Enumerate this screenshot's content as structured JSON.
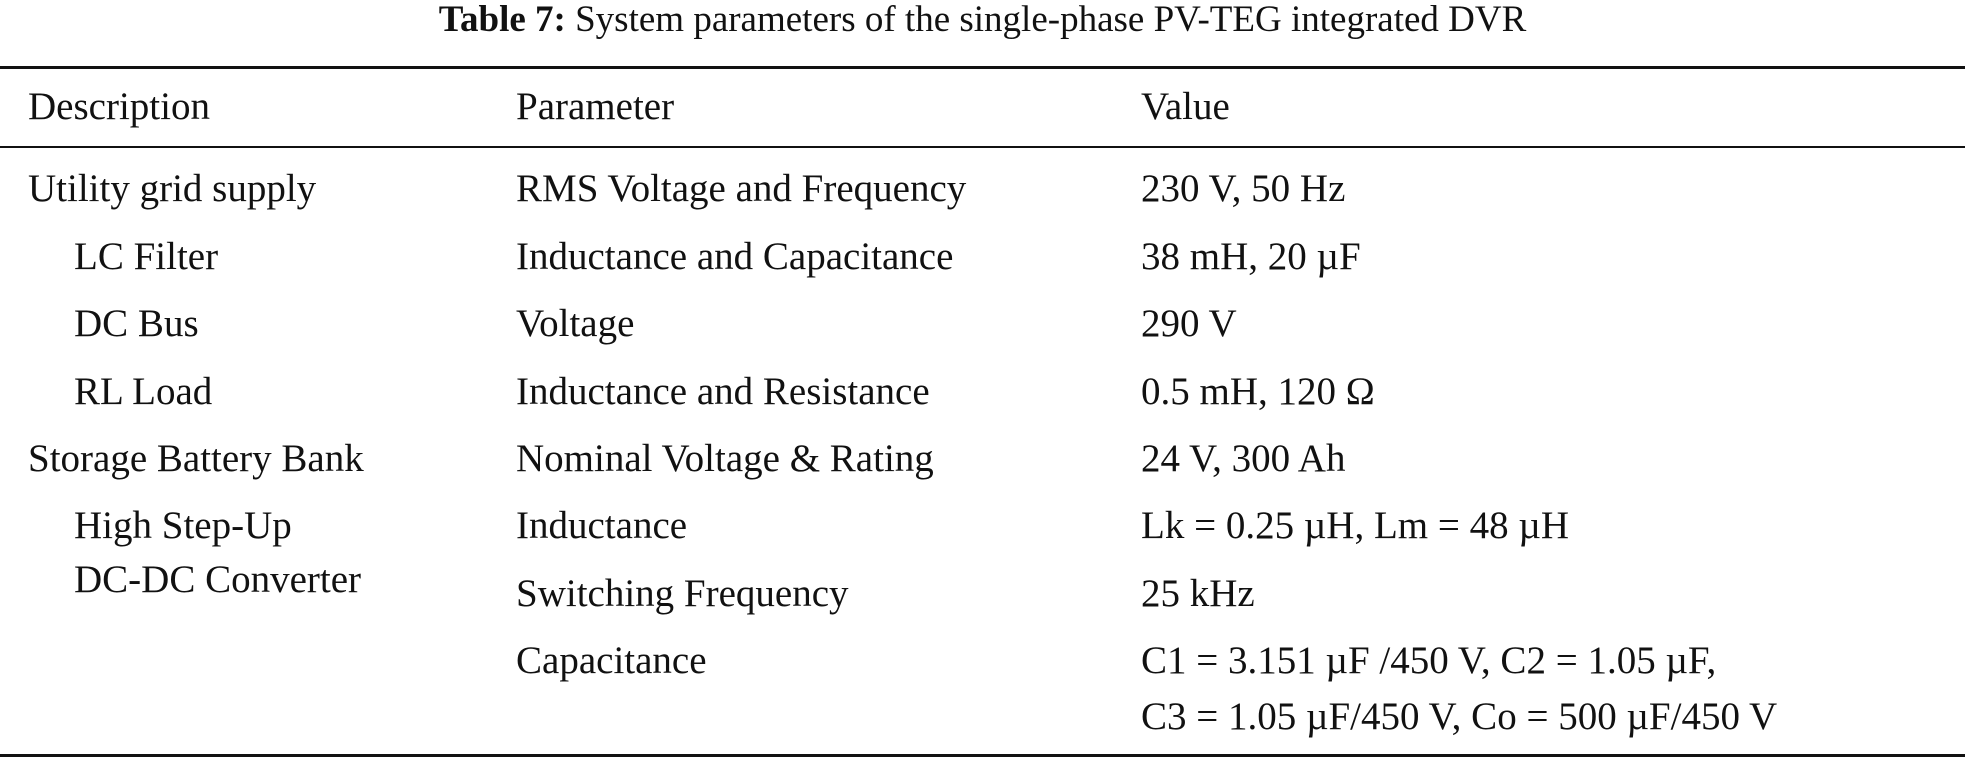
{
  "table": {
    "caption_label": "Table 7:",
    "caption_text": "System parameters of the single-phase PV-TEG integrated DVR",
    "columns": [
      "Description",
      "Parameter",
      "Value"
    ],
    "rows": [
      {
        "description": "Utility grid supply",
        "parameter": "RMS Voltage and Frequency",
        "value": "230 V, 50 Hz"
      },
      {
        "description": "LC Filter",
        "parameter": "Inductance and Capacitance",
        "value": "38 mH, 20 µF"
      },
      {
        "description": "DC Bus",
        "parameter": "Voltage",
        "value": "290 V"
      },
      {
        "description": "RL Load",
        "parameter": "Inductance and Resistance",
        "value": "0.5 mH, 120 Ω"
      },
      {
        "description": "Storage Battery Bank",
        "parameter": "Nominal Voltage & Rating",
        "value": "24 V, 300 Ah"
      },
      {
        "description": "High Step-Up",
        "description_2": "DC-DC Converter",
        "parameter": "Inductance",
        "value": "Lk = 0.25 µH, Lm = 48 µH"
      },
      {
        "description": "",
        "parameter": "Switching Frequency",
        "value": "25 kHz"
      },
      {
        "description": "",
        "parameter": "Capacitance",
        "value": "C1 = 3.151 µF /450 V, C2 = 1.05 µF,",
        "value_2": "C3 = 1.05 µF/450 V, Co = 500 µF/450 V"
      }
    ]
  }
}
